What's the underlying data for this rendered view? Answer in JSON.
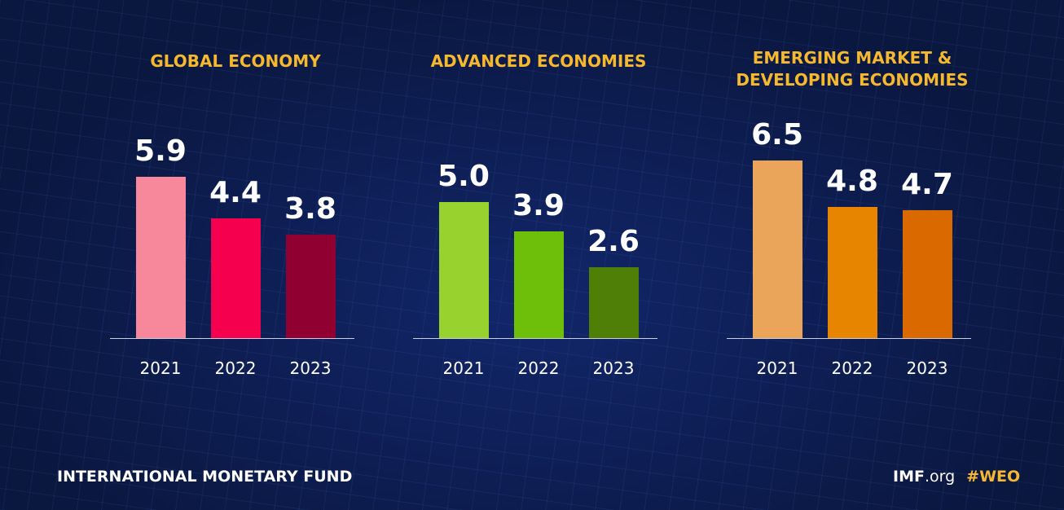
{
  "chart_data": [
    {
      "type": "bar",
      "title": "GLOBAL ECONOMY",
      "categories": [
        "2021",
        "2022",
        "2023"
      ],
      "values": [
        5.9,
        4.4,
        3.8
      ],
      "value_labels": [
        "5.9",
        "4.4",
        "3.8"
      ],
      "colors": [
        "#f7879a",
        "#f5004f",
        "#900031"
      ]
    },
    {
      "type": "bar",
      "title": "ADVANCED ECONOMIES",
      "categories": [
        "2021",
        "2022",
        "2023"
      ],
      "values": [
        5.0,
        3.9,
        2.6
      ],
      "value_labels": [
        "5.0",
        "3.9",
        "2.6"
      ],
      "colors": [
        "#97d22f",
        "#6ebf0a",
        "#4f7f06"
      ]
    },
    {
      "type": "bar",
      "title": "EMERGING MARKET & DEVELOPING ECONOMIES",
      "categories": [
        "2021",
        "2022",
        "2023"
      ],
      "values": [
        6.5,
        4.8,
        4.7
      ],
      "value_labels": [
        "6.5",
        "4.8",
        "4.7"
      ],
      "colors": [
        "#eba55a",
        "#e88500",
        "#da6a00"
      ]
    }
  ],
  "footer": {
    "organization": "INTERNATIONAL MONETARY FUND",
    "site_bold": "IMF",
    "site_light": ".org",
    "hashtag": "#WEO"
  }
}
